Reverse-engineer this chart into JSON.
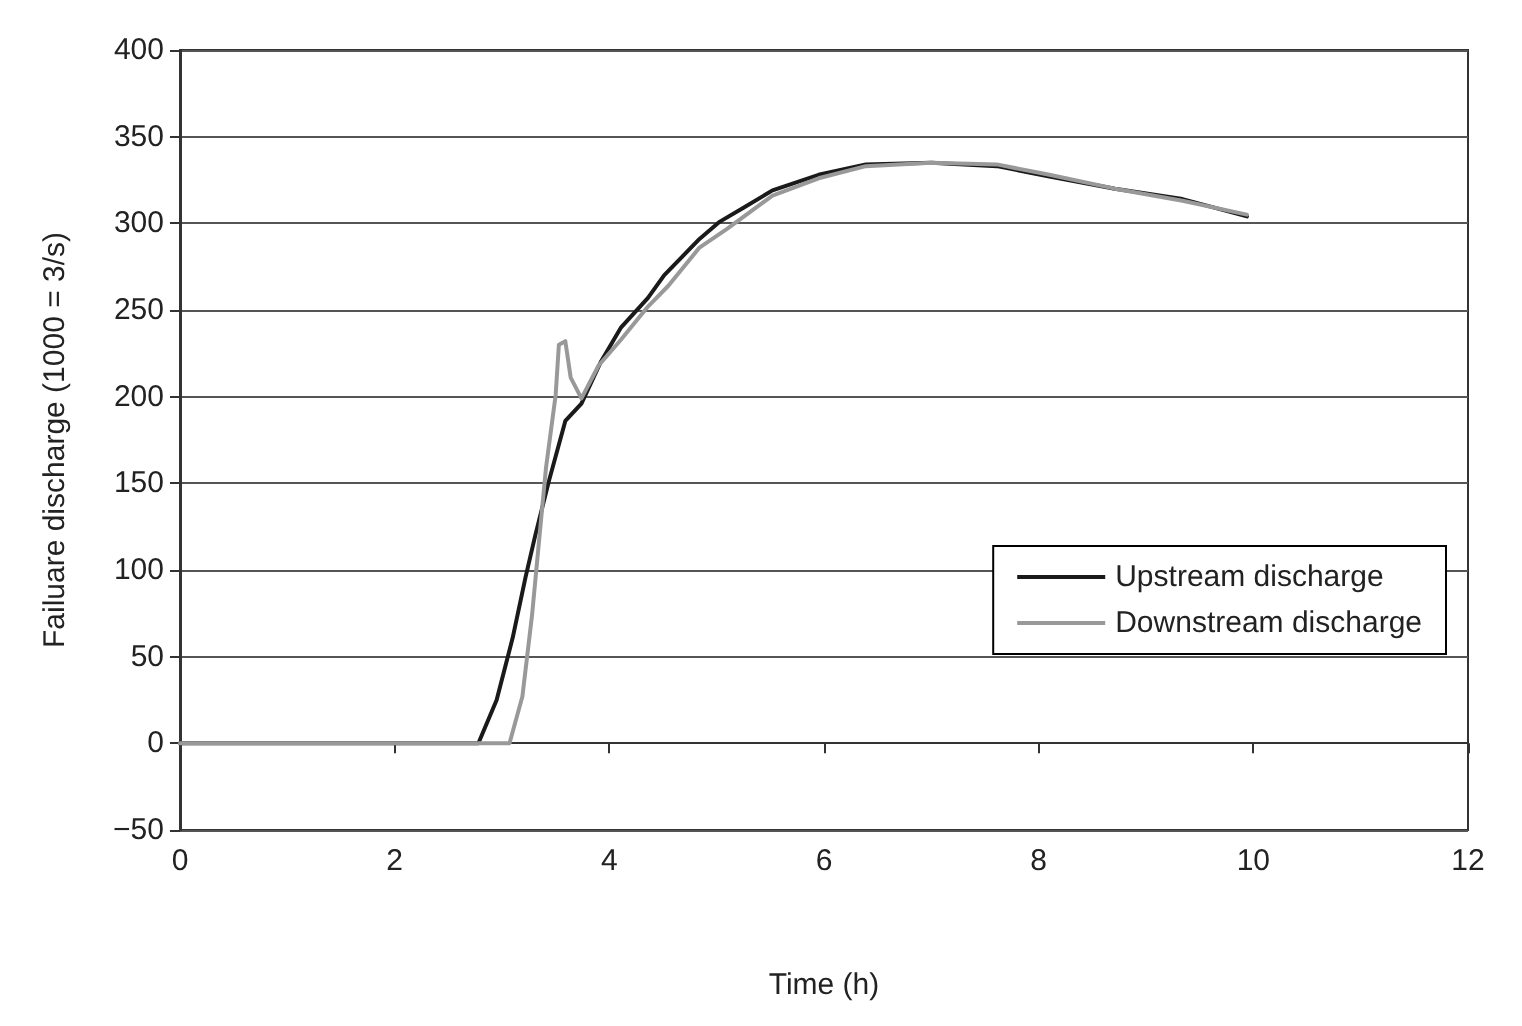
{
  "chart_data": {
    "type": "line",
    "xlabel": "Time (h)",
    "ylabel": "Failuare discharge (1000 = 3/s)",
    "xlim": [
      0,
      12
    ],
    "xticks": [
      0,
      2,
      4,
      6,
      8,
      10,
      12
    ],
    "ylim": [
      -50,
      400
    ],
    "yticks": [
      -50,
      0,
      50,
      100,
      150,
      200,
      250,
      300,
      350,
      400
    ],
    "grid": "y",
    "legend": "right",
    "marker": "none",
    "line_style": "solid",
    "series": [
      {
        "name": "Upstream discharge",
        "color": "#1a1a1a",
        "x": [
          0,
          2.78,
          2.95,
          3.1,
          3.22,
          3.31,
          3.44,
          3.59,
          3.74,
          3.92,
          4.11,
          4.36,
          4.51,
          4.84,
          5.03,
          5.25,
          5.52,
          5.95,
          6.39,
          7.0,
          7.61,
          8.1,
          8.71,
          9.34,
          9.94
        ],
        "values": [
          0,
          0,
          25,
          61,
          96,
          120,
          152,
          186,
          196,
          220,
          240,
          257,
          270,
          291,
          301,
          309,
          319,
          328,
          334,
          335,
          333,
          327,
          320,
          314,
          304
        ]
      },
      {
        "name": "Downstream discharge",
        "color": "#999999",
        "x": [
          0,
          3.07,
          3.19,
          3.28,
          3.35,
          3.41,
          3.5,
          3.53,
          3.59,
          3.64,
          3.74,
          3.9,
          4.11,
          4.36,
          4.55,
          4.84,
          5.1,
          5.52,
          5.95,
          6.39,
          7.0,
          7.61,
          8.1,
          8.71,
          9.34,
          9.94
        ],
        "values": [
          0,
          0,
          27,
          74,
          120,
          159,
          201,
          230,
          232,
          211,
          199,
          218,
          233,
          252,
          264,
          286,
          297,
          316,
          326,
          333,
          335,
          334,
          328,
          320,
          313,
          305
        ]
      }
    ]
  }
}
